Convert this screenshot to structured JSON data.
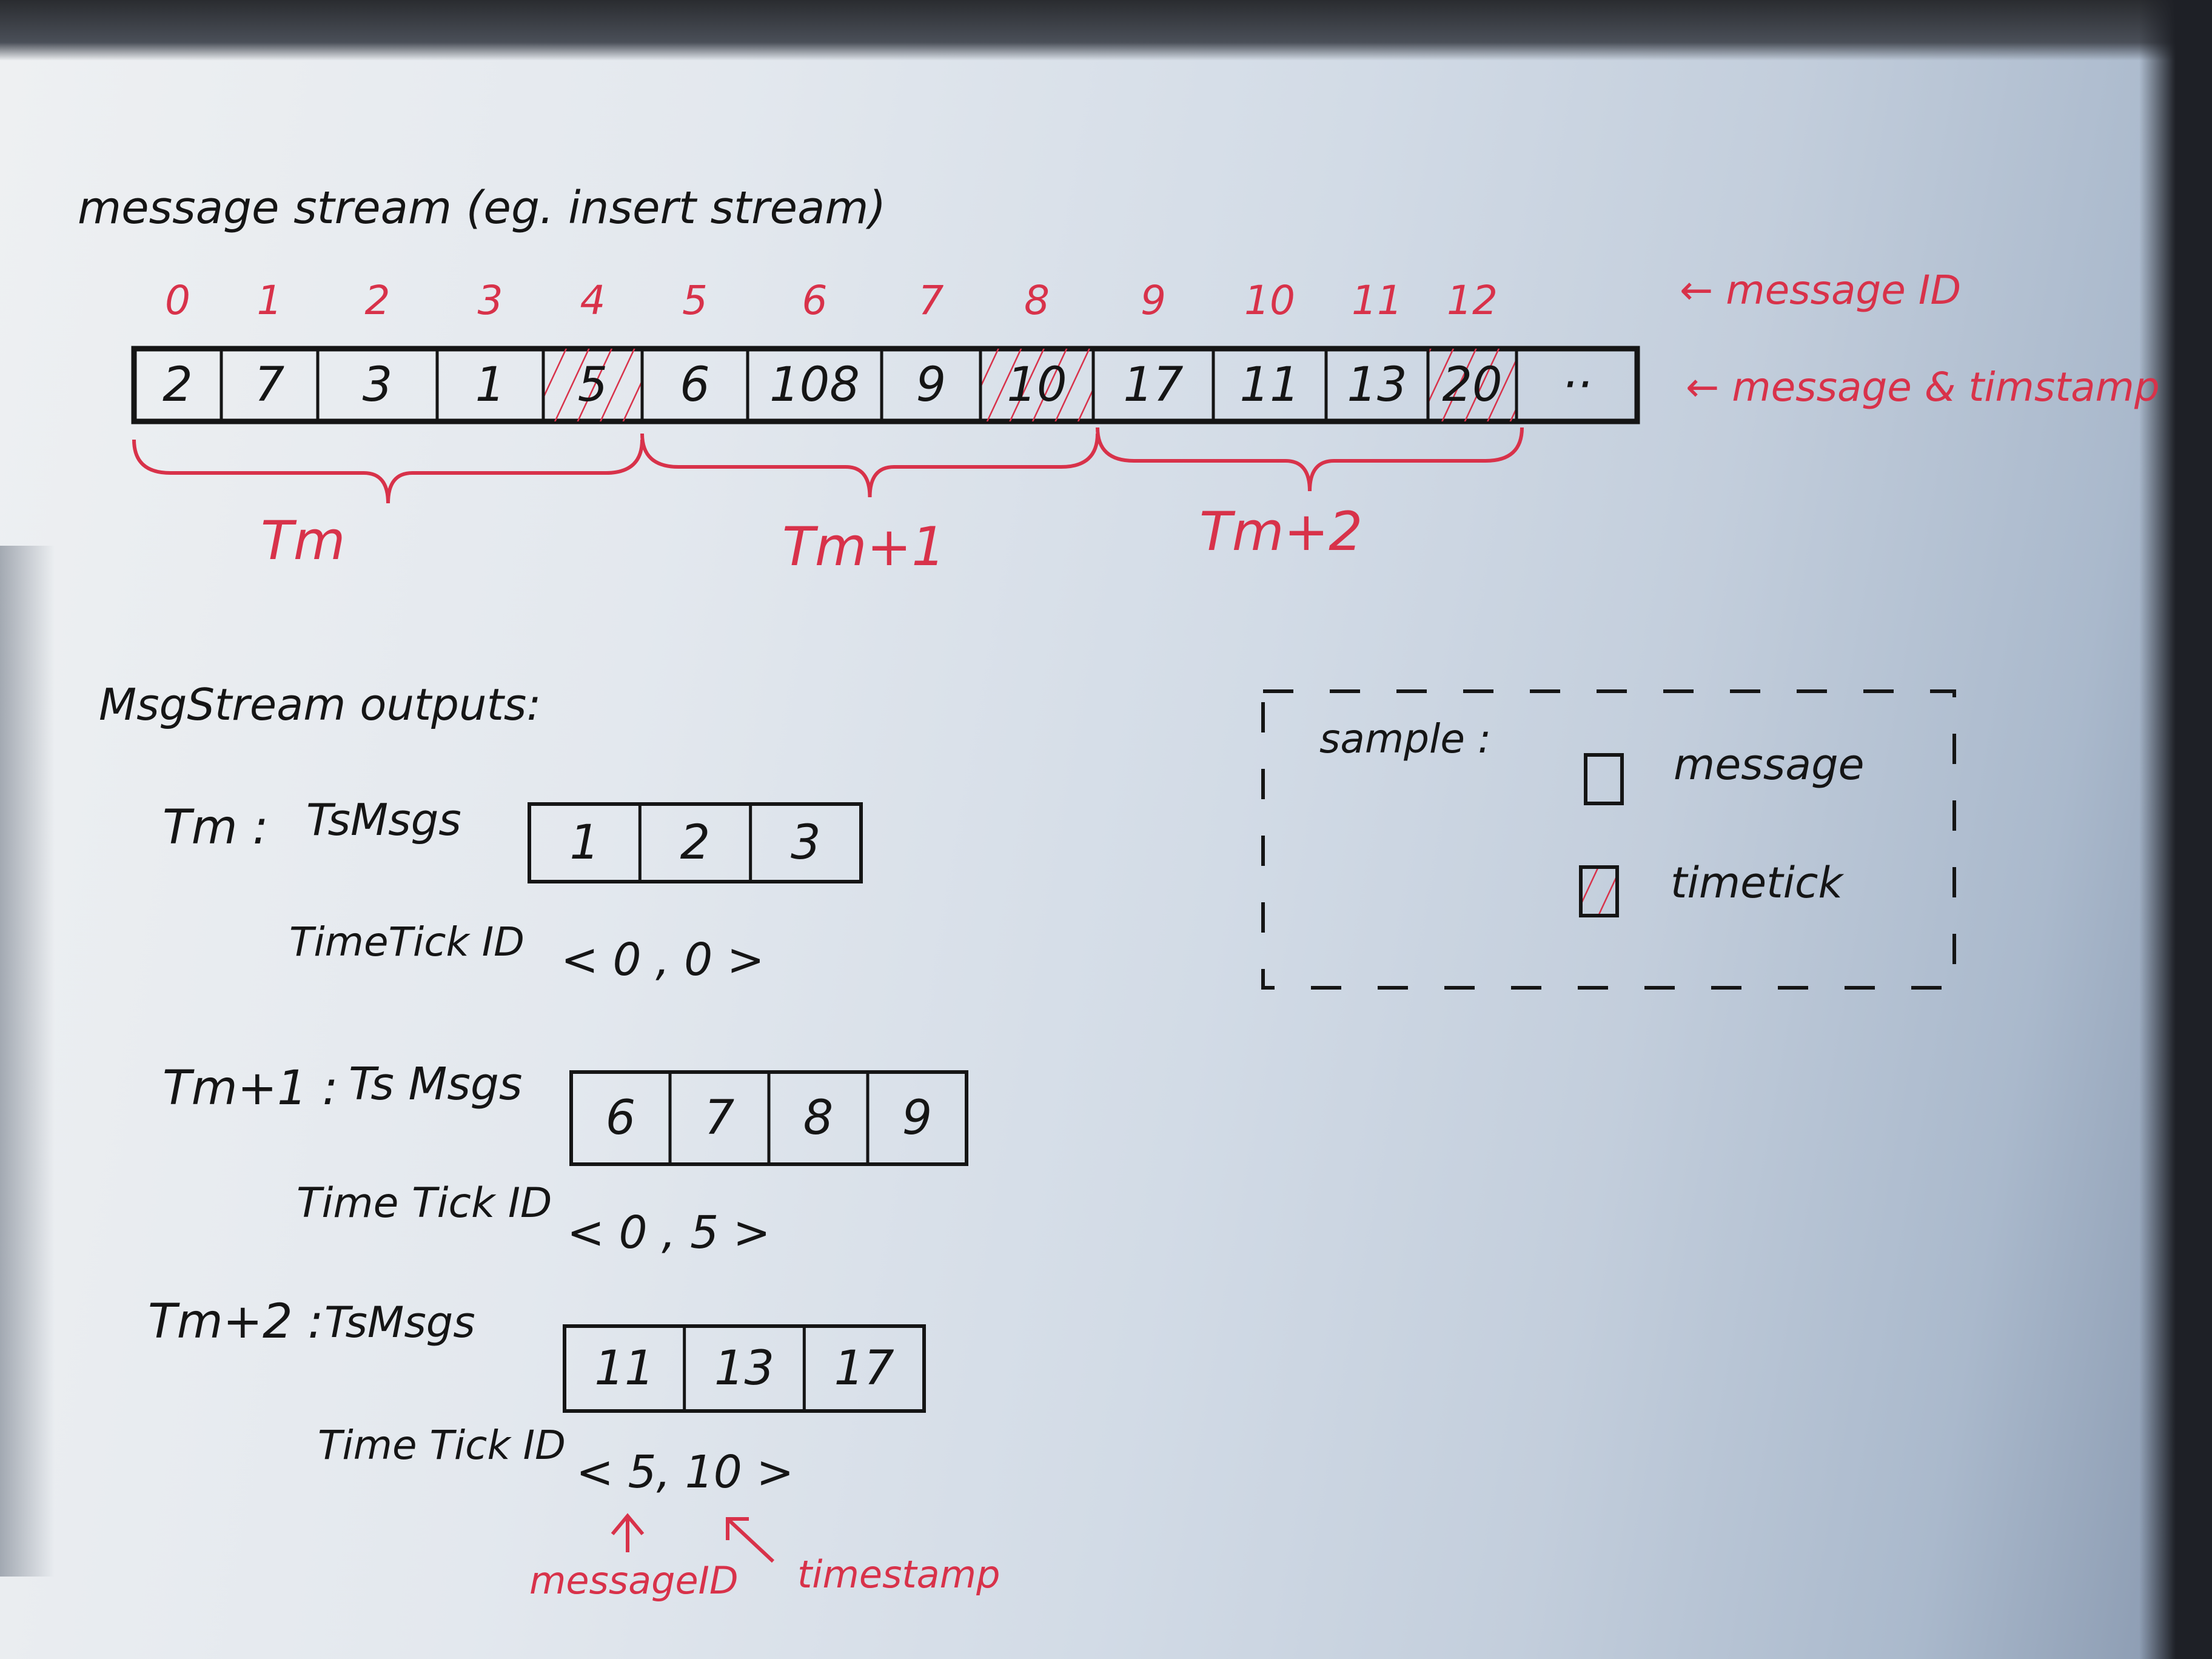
{
  "title": "message stream (eg. insert stream)",
  "stream": {
    "ids": [
      "0",
      "1",
      "2",
      "3",
      "4",
      "5",
      "6",
      "7",
      "8",
      "9",
      "10",
      "11",
      "12"
    ],
    "timestamps": [
      "2",
      "7",
      "3",
      "1",
      "5",
      "6",
      "108",
      "9",
      "10",
      "17",
      "11",
      "13",
      "20",
      "··"
    ],
    "timetick_indices": [
      4,
      8,
      12
    ],
    "id_label": "← message ID",
    "ts_label": "← message & timstamp"
  },
  "groups": [
    {
      "label": "Tm"
    },
    {
      "label": "Tm+1"
    },
    {
      "label": "Tm+2"
    }
  ],
  "outputs": {
    "heading": "MsgStream outputs:",
    "rows": [
      {
        "label": "Tm :",
        "msgs_label": "TsMsgs",
        "msgs": [
          "1",
          "2",
          "3"
        ],
        "tt_label": "TimeTick ID",
        "tt_value": "< 0 , 0 >"
      },
      {
        "label": "Tm+1 :",
        "msgs_label": "Ts Msgs",
        "msgs": [
          "6",
          "7",
          "8",
          "9"
        ],
        "tt_label": "Time Tick ID",
        "tt_value": "< 0 , 5 >"
      },
      {
        "label": "Tm+2 :",
        "msgs_label": "TsMsgs",
        "msgs": [
          "11",
          "13",
          "17"
        ],
        "tt_label": "Time Tick ID",
        "tt_value": "< 5, 10 >"
      }
    ],
    "annot_message_id": "messageID",
    "annot_timestamp": "timestamp"
  },
  "legend": {
    "title": "sample :",
    "items": [
      {
        "label": "message",
        "icon": "empty-square"
      },
      {
        "label": "timetick",
        "icon": "red-hatched-square"
      }
    ]
  },
  "colors": {
    "ink": "#151515",
    "red": "#d8324a"
  }
}
